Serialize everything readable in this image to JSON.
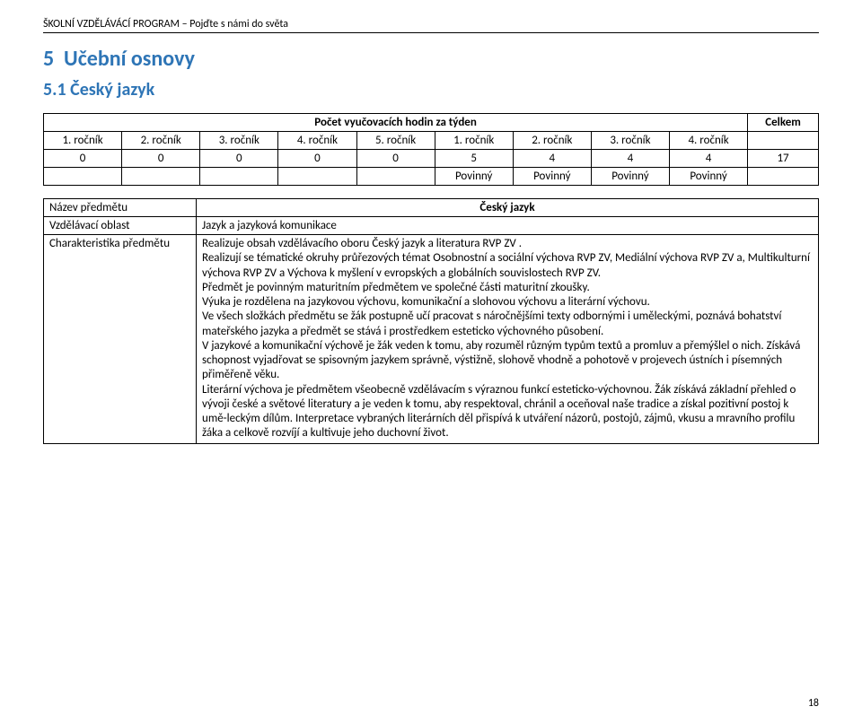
{
  "doc_header": "ŠKOLNÍ VZDĚLÁVÁCÍ PROGRAM  –  Pojďte s námi do světa",
  "heading": {
    "section_number": "5",
    "section_title": "Učební osnovy",
    "subsection": "5.1 Český jazyk"
  },
  "colors": {
    "heading": "#2e75b6",
    "text": "#000000",
    "border": "#000000",
    "bg": "#ffffff"
  },
  "hours_table": {
    "caption_left": "Počet vyučovacích hodin za týden",
    "caption_right": "Celkem",
    "grades": [
      "1. ročník",
      "2. ročník",
      "3. ročník",
      "4. ročník",
      "5. ročník",
      "1. ročník",
      "2. ročník",
      "3. ročník",
      "4. ročník"
    ],
    "values": [
      "0",
      "0",
      "0",
      "0",
      "0",
      "5",
      "4",
      "4",
      "4",
      "17"
    ],
    "modes": [
      "",
      "",
      "",
      "",
      "",
      "Povinný",
      "Povinný",
      "Povinný",
      "Povinný",
      ""
    ]
  },
  "subject": {
    "row1_label": "Název předmětu",
    "row1_value": "Český jazyk",
    "row2_label": "Vzdělávací oblast",
    "row2_value": "Jazyk a jazyková komunikace",
    "row3_label": "Charakteristika předmětu",
    "char_paragraphs": [
      "Realizuje obsah vzdělávacího oboru Český jazyk a literatura RVP ZV .",
      "Realizují se tématické okruhy průřezových témat Osobnostní a sociální výchova RVP ZV, Mediální výchova RVP ZV a, Multikulturní výchova RVP ZV a  Výchova k myšlení v evropských a globálních souvislostech RVP ZV.",
      "Předmět je povinným maturitním předmětem ve společné části maturitní zkoušky.",
      "Výuka je rozdělena na jazykovou výchovu, komunikační a slohovou výchovu a literární výchovu.",
      "Ve všech složkách předmětu se žák postupně učí pracovat s náročnějšími texty odbornými i uměleckými, poznává bohatství mateřského jazyka a předmět se stává i prostředkem esteticko výchovného působení.",
      "V jazykové a komunikační výchově je žák veden k tomu, aby rozuměl různým typům textů a promluv a přemýšlel o nich. Získává schopnost vyjadřovat se spisovným jazykem správně, výstižně, slohově vhodně a pohotově v projevech ústních i písemných přiměřeně věku.",
      "Literární výchova je předmětem všeobecně vzdělávacím s výraznou funkcí esteticko-výchovnou. Žák získává základní přehled o vývoji české a světové literatury a je veden k tomu, aby respektoval, chránil a oceňoval naše tradice a získal pozitivní postoj k umě-leckým dílům. Interpretace vybraných literárních děl přispívá k utváření názorů, postojů, zájmů, vkusu a mravního profilu žáka a celkově rozvíjí a kultivuje jeho duchovní život."
    ]
  },
  "page_number": "18"
}
